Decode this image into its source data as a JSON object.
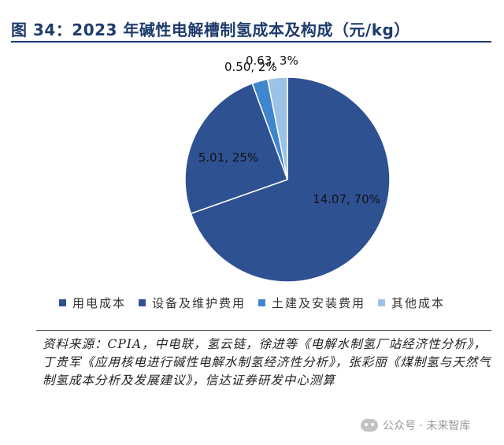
{
  "title": "图 34：2023 年碱性电解槽制氢成本及构成（元/kg）",
  "chart_data": {
    "type": "pie",
    "title": "图 34：2023 年碱性电解槽制氢成本及构成（元/kg）",
    "unit": "元/kg",
    "slices": [
      {
        "name": "用电成本",
        "value": 14.07,
        "percent": 70,
        "label": "14.07, 70%",
        "color": "#2e5192"
      },
      {
        "name": "设备及维护费用",
        "value": 5.01,
        "percent": 25,
        "label": "5.01, 25%",
        "color": "#2e5192"
      },
      {
        "name": "土建及安装费用",
        "value": 0.5,
        "percent": 2,
        "label": "0.50, 2%",
        "color": "#3f86cc"
      },
      {
        "name": "其他成本",
        "value": 0.63,
        "percent": 3,
        "label": "0.63, 3%",
        "color": "#9cc3e6"
      }
    ],
    "legend_position": "bottom"
  },
  "legend": [
    {
      "label": "用电成本",
      "color": "#2e5192"
    },
    {
      "label": "设备及维护费用",
      "color": "#2e5192"
    },
    {
      "label": "土建及安装费用",
      "color": "#3f86cc"
    },
    {
      "label": "其他成本",
      "color": "#9cc3e6"
    }
  ],
  "source": "资料来源：CPIA，中电联，氢云链，徐进等《电解水制氢厂站经济性分析》，丁贵军《应用核电进行碱性电解水制氢经济性分析》，张彩丽《煤制氢与天然气制氢成本分析及发展建议》，信达证券研发中心测算",
  "watermark": "公众号 · 未来智库"
}
